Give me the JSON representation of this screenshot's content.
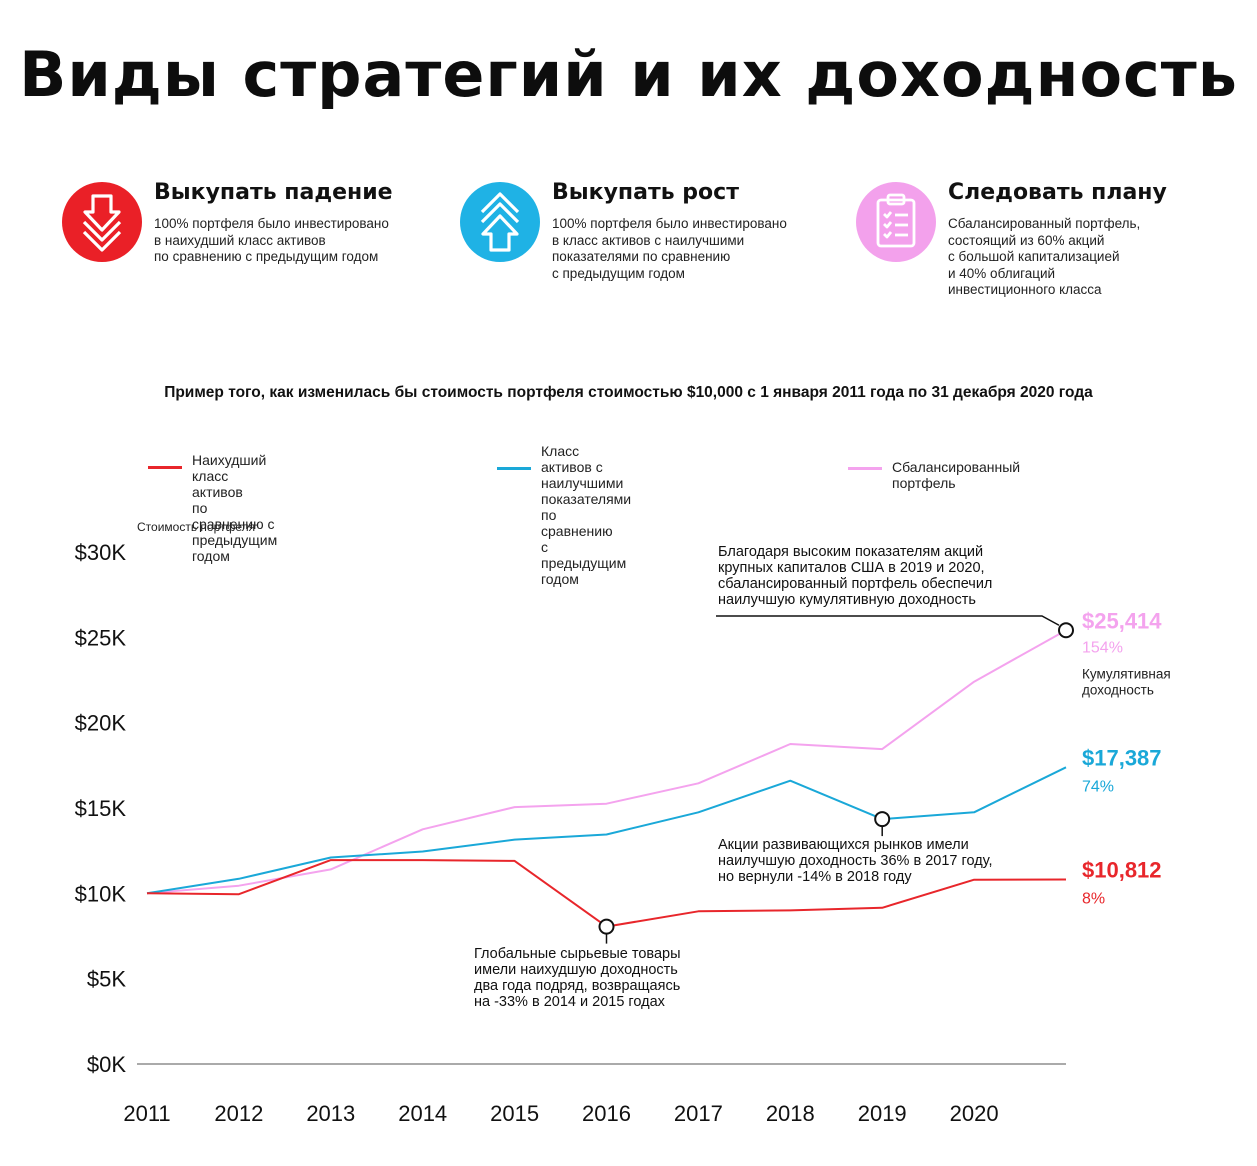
{
  "title": "Виды стратегий и их доходность",
  "strategies": [
    {
      "title": "Выкупать падение",
      "description": "100% портфеля было инвестировано\nв наихудший класс активов\nпо сравнению с предыдущим годом",
      "icon": "arrow-down-icon",
      "color": "#ea2027"
    },
    {
      "title": "Выкупать рост",
      "description": "100% портфеля было инвестировано\nв класс активов с наилучшими\nпоказателями по сравнению\nс предыдущим годом",
      "icon": "arrow-up-icon",
      "color": "#1fb2e5"
    },
    {
      "title": "Следовать плану",
      "description": "Сбалансированный портфель,\nсостоящий из 60% акций\nс большой капитализацией\nи 40% облигаций\nинвестиционного класса",
      "icon": "clipboard-icon",
      "color": "#f3a1ec"
    }
  ],
  "subtitle": "Пример того, как изменилась бы стоимость портфеля стоимостью $10,000 с 1 января 2011 года по 31 декабря 2020 года",
  "legend": [
    {
      "label": "Наихудший класс активов\nпо сравнению с предыдущим годом",
      "color": "#e8262b"
    },
    {
      "label": "Класс активов с наилучшими\nпоказателями по сравнению\nс предыдущим годом",
      "color": "#1aa8d8"
    },
    {
      "label": "Сбалансированный портфель",
      "color": "#f4a3ee"
    }
  ],
  "chart_data": {
    "type": "line",
    "ylabel": "Стоимость портфеля",
    "xlabel": "",
    "x_ticks": [
      "2011",
      "2012",
      "2013",
      "2014",
      "2015",
      "2016",
      "2017",
      "2018",
      "2019",
      "2020"
    ],
    "x": [
      2011,
      2012,
      2013,
      2014,
      2015,
      2016,
      2017,
      2018,
      2019,
      2020,
      2021
    ],
    "ylim": [
      0,
      30000
    ],
    "y_ticks": [
      {
        "value": 0,
        "label": "$0K"
      },
      {
        "value": 5000,
        "label": "$5K"
      },
      {
        "value": 10000,
        "label": "$10K"
      },
      {
        "value": 15000,
        "label": "$15K"
      },
      {
        "value": 20000,
        "label": "$20K"
      },
      {
        "value": 25000,
        "label": "$25K"
      },
      {
        "value": 30000,
        "label": "$30K"
      }
    ],
    "grid": false,
    "series": [
      {
        "name": "Наихудший класс активов по сравнению с предыдущим годом",
        "color": "#e8262b",
        "values": [
          10000,
          9950,
          11950,
          11950,
          11900,
          8050,
          8950,
          9000,
          9150,
          10800,
          10812
        ],
        "end_value": "$10,812",
        "end_percent": "8%"
      },
      {
        "name": "Класс активов с наилучшими показателями по сравнению с предыдущим годом",
        "color": "#1aa8d8",
        "values": [
          10000,
          10850,
          12100,
          12450,
          13150,
          13450,
          14750,
          16600,
          14350,
          14750,
          17387
        ],
        "end_value": "$17,387",
        "end_percent": "74%"
      },
      {
        "name": "Сбалансированный портфель",
        "color": "#f4a3ee",
        "values": [
          10000,
          10450,
          11400,
          13750,
          15050,
          15250,
          16450,
          18750,
          18450,
          22400,
          25414
        ],
        "end_value": "$25,414",
        "end_percent": "154%"
      }
    ],
    "end_note": "Кумулятивная\nдоходность",
    "annotations": [
      {
        "text": "Благодаря высоким показателям акций\nкрупных капиталов США в 2019 и 2020,\nсбалансированный портфель обеспечил\nнаилучшую кумулятивную доходность",
        "series": 2,
        "point": 10
      },
      {
        "text": "Акции развивающихся рынков имели\nнаилучшую доходность 36% в 2017 году,\nно вернули -14% в 2018 году",
        "series": 1,
        "point": 8
      },
      {
        "text": "Глобальные сырьевые товары\nимели наихудшую доходность\nдва года подряд, возвращаясь\nна -33% в 2014 и 2015 годах",
        "series": 0,
        "point": 5
      }
    ]
  }
}
